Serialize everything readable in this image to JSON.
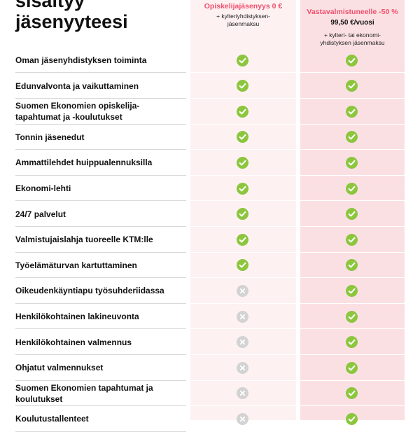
{
  "heading": {
    "line1": "sisältyy",
    "line2": "jäsenyyteesi"
  },
  "plans": [
    {
      "name": "Opiskelijajäsenyys 0 €",
      "price": "",
      "note_line1": "+ kylteriyhdistyksen-",
      "note_line2": "jäsenmaksu"
    },
    {
      "name": "Vastavalmistuneelle -50 %",
      "price": "99,50 €/vuosi",
      "note_line1": "+ kylteri- tai ekonomi-",
      "note_line2": "yhdistyksen jäsenmaksu"
    }
  ],
  "rows": [
    {
      "label_line1": "Oman jäsenyhdistyksen toiminta",
      "label_line2": "",
      "student": "check-icon",
      "graduate": "check-icon"
    },
    {
      "label_line1": "Edunvalvonta ja vaikuttaminen",
      "label_line2": "",
      "student": "check-icon",
      "graduate": "check-icon"
    },
    {
      "label_line1": "Suomen Ekonomien opiskelija-",
      "label_line2": "tapahtumat ja -koulutukset",
      "student": "check-icon",
      "graduate": "check-icon"
    },
    {
      "label_line1": "Tonnin jäsenedut",
      "label_line2": "",
      "student": "check-icon",
      "graduate": "check-icon"
    },
    {
      "label_line1": "Ammattilehdet huippualennuksilla",
      "label_line2": "",
      "student": "check-icon",
      "graduate": "check-icon"
    },
    {
      "label_line1": "Ekonomi-lehti",
      "label_line2": "",
      "student": "check-icon",
      "graduate": "check-icon"
    },
    {
      "label_line1": "24/7 palvelut",
      "label_line2": "",
      "student": "check-icon",
      "graduate": "check-icon"
    },
    {
      "label_line1": "Valmistujaislahja tuoreelle KTM:lle",
      "label_line2": "",
      "student": "check-icon",
      "graduate": "check-icon"
    },
    {
      "label_line1": "Työelämäturvan kartuttaminen",
      "label_line2": "",
      "student": "check-icon",
      "graduate": "check-icon"
    },
    {
      "label_line1": "Oikeudenkäyntiapu työsuhderiidassa",
      "label_line2": "",
      "student": "cross-icon",
      "graduate": "check-icon"
    },
    {
      "label_line1": "Henkilökohtainen lakineuvonta",
      "label_line2": "",
      "student": "cross-icon",
      "graduate": "check-icon"
    },
    {
      "label_line1": "Henkilökohtainen valmennus",
      "label_line2": "",
      "student": "cross-icon",
      "graduate": "check-icon"
    },
    {
      "label_line1": "Ohjatut valmennukset",
      "label_line2": "",
      "student": "cross-icon",
      "graduate": "check-icon"
    },
    {
      "label_line1": "Suomen Ekonomien tapahtumat ja",
      "label_line2": "koulutukset",
      "student": "cross-icon",
      "graduate": "check-icon"
    },
    {
      "label_line1": "Koulutustallenteet",
      "label_line2": "",
      "student": "cross-icon",
      "graduate": "check-icon"
    }
  ],
  "colors": {
    "accent": "#f0506e",
    "check": "#8cc63e",
    "cross": "#d3d3d3",
    "student_bg": "#fdf1f1",
    "graduate_bg": "#fbe0e3"
  }
}
